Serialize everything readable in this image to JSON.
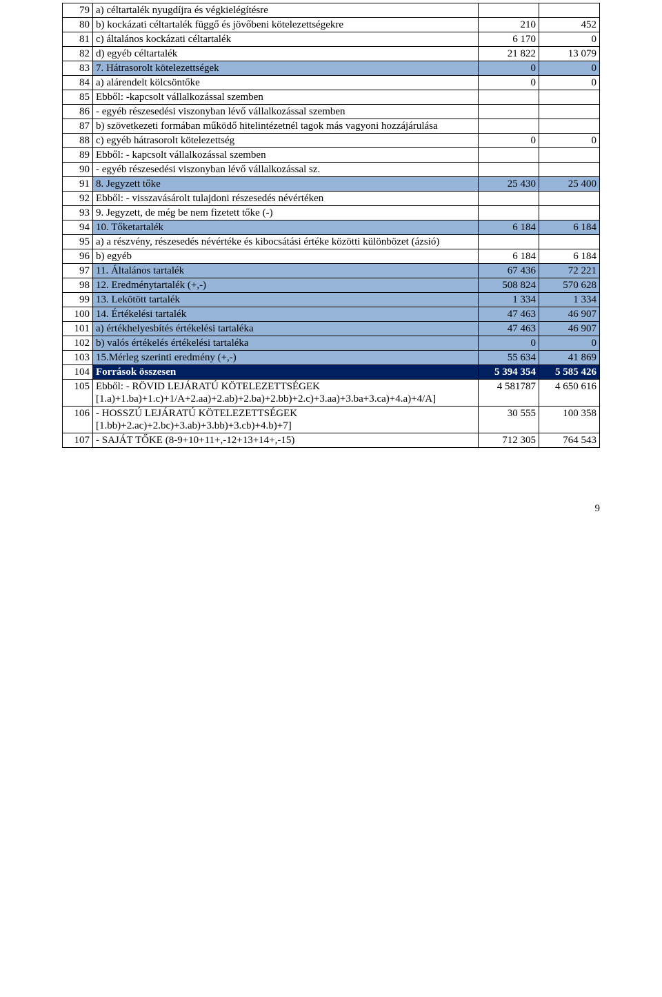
{
  "colors": {
    "hl_light": "#97b5d9",
    "hl_dark_bg": "#002060",
    "hl_dark_fg": "#ffffff",
    "border": "#000000",
    "text": "#000000",
    "bg": "#ffffff"
  },
  "rows": [
    {
      "no": "79",
      "label": "      a) céltartalék nyugdíjra és végkielégítésre",
      "v1": "",
      "v2": "",
      "bg": "",
      "indent": 1
    },
    {
      "no": "80",
      "label": "      b) kockázati céltartalék függő és jövőbeni kötelezettségekre",
      "v1": "210",
      "v2": "452",
      "bg": "",
      "indent": 1
    },
    {
      "no": "81",
      "label": "      c) általános kockázati céltartalék",
      "v1": "6 170",
      "v2": "0",
      "bg": "",
      "indent": 1
    },
    {
      "no": "82",
      "label": "      d) egyéb céltartalék",
      "v1": "21 822",
      "v2": "13 079",
      "bg": "",
      "indent": 1
    },
    {
      "no": "83",
      "label": "7. Hátrasorolt kötelezettségek",
      "v1": "0",
      "v2": "0",
      "bg": "light",
      "indent": 0
    },
    {
      "no": "84",
      "label": "      a) alárendelt kölcsöntőke",
      "v1": "0",
      "v2": "0",
      "bg": "",
      "indent": 1
    },
    {
      "no": "85",
      "label": "         Ebből: -kapcsolt vállalkozással szemben",
      "v1": "",
      "v2": "",
      "bg": "",
      "indent": 2
    },
    {
      "no": "86",
      "label": "                      - egyéb részesedési viszonyban lévő vállalkozással szemben",
      "v1": "",
      "v2": "",
      "bg": "",
      "indent": 0
    },
    {
      "no": "87",
      "label": "      b) szövetkezeti formában működő hitelintézetnél tagok más vagyoni hozzájárulása",
      "v1": "",
      "v2": "",
      "bg": "",
      "indent": 0
    },
    {
      "no": "88",
      "label": "      c) egyéb hátrasorolt kötelezettség",
      "v1": "0",
      "v2": "0",
      "bg": "",
      "indent": 1
    },
    {
      "no": "89",
      "label": "         Ebből: - kapcsolt vállalkozással szemben",
      "v1": "",
      "v2": "",
      "bg": "",
      "indent": 2
    },
    {
      "no": "90",
      "label": "                      - egyéb részesedési viszonyban lévő vállalkozással sz.",
      "v1": "",
      "v2": "",
      "bg": "",
      "indent": 0
    },
    {
      "no": "91",
      "label": "8. Jegyzett tőke",
      "v1": "25 430",
      "v2": "25 400",
      "bg": "light",
      "indent": 0
    },
    {
      "no": "92",
      "label": "    Ebből: - visszavásárolt tulajdoni részesedés névértéken",
      "v1": "",
      "v2": "",
      "bg": "",
      "indent": 1
    },
    {
      "no": "93",
      "label": "9. Jegyzett, de még be nem fizetett tőke (-)",
      "v1": "",
      "v2": "",
      "bg": "",
      "indent": 0
    },
    {
      "no": "94",
      "label": "10. Tőketartalék",
      "v1": "6 184",
      "v2": "6 184",
      "bg": "light",
      "indent": 0
    },
    {
      "no": "95",
      "label": "      a) a részvény, részesedés névértéke és kibocsátási értéke közötti különbözet (ázsió)",
      "v1": "",
      "v2": "",
      "bg": "",
      "indent": 0
    },
    {
      "no": "96",
      "label": "       b) egyéb",
      "v1": "6 184",
      "v2": "6 184",
      "bg": "",
      "indent": 2
    },
    {
      "no": "97",
      "label": "11. Általános tartalék",
      "v1": "67 436",
      "v2": "72 221",
      "bg": "light",
      "indent": 0
    },
    {
      "no": "98",
      "label": "12. Eredménytartalék (+,-)",
      "v1": "508 824",
      "v2": "570 628",
      "bg": "light",
      "indent": 0
    },
    {
      "no": "99",
      "label": "13. Lekötött tartalék",
      "v1": "1 334",
      "v2": "1 334",
      "bg": "light",
      "indent": 0
    },
    {
      "no": "100",
      "label": "14. Értékelési tartalék",
      "v1": "47 463",
      "v2": "46 907",
      "bg": "light",
      "indent": 0
    },
    {
      "no": "101",
      "label": "      a) értékhelyesbítés értékelési tartaléka",
      "v1": "47 463",
      "v2": "46 907",
      "bg": "light",
      "indent": 1
    },
    {
      "no": "102",
      "label": "      b) valós értékelés értékelési tartaléka",
      "v1": "0",
      "v2": "0",
      "bg": "light",
      "indent": 1
    },
    {
      "no": "103",
      "label": "15.Mérleg szerinti eredmény (+,-)",
      "v1": "55 634",
      "v2": "41 869",
      "bg": "light",
      "indent": 0
    },
    {
      "no": "104",
      "label": "Források összesen",
      "v1": "5 394 354",
      "v2": "5 585 426",
      "bg": "dark",
      "indent": 0
    },
    {
      "no": "105",
      "label": " Ebből: - RÖVID LEJÁRATÚ KÖTELEZETTSÉGEK [1.a)+1.ba)+1.c)+1/A+2.aa)+2.ab)+2.ba)+2.bb)+2.c)+3.aa)+3.ba+3.ca)+4.a)+4/A]",
      "v1": "4 581787",
      "v2": "4 650 616",
      "bg": "",
      "indent": 0
    },
    {
      "no": "106",
      "label": "               - HOSSZÚ LEJÁRATÚ KÖTELEZETTSÉGEK [1.bb)+2.ac)+2.bc)+3.ab)+3.bb)+3.cb)+4.b)+7]",
      "v1": "30 555",
      "v2": "100 358",
      "bg": "",
      "indent": 0
    },
    {
      "no": "107",
      "label": "               - SAJÁT TŐKE (8-9+10+11+,-12+13+14+,-15)",
      "v1": "712 305",
      "v2": "764 543",
      "bg": "",
      "indent": 1
    }
  ],
  "page_number": "9"
}
